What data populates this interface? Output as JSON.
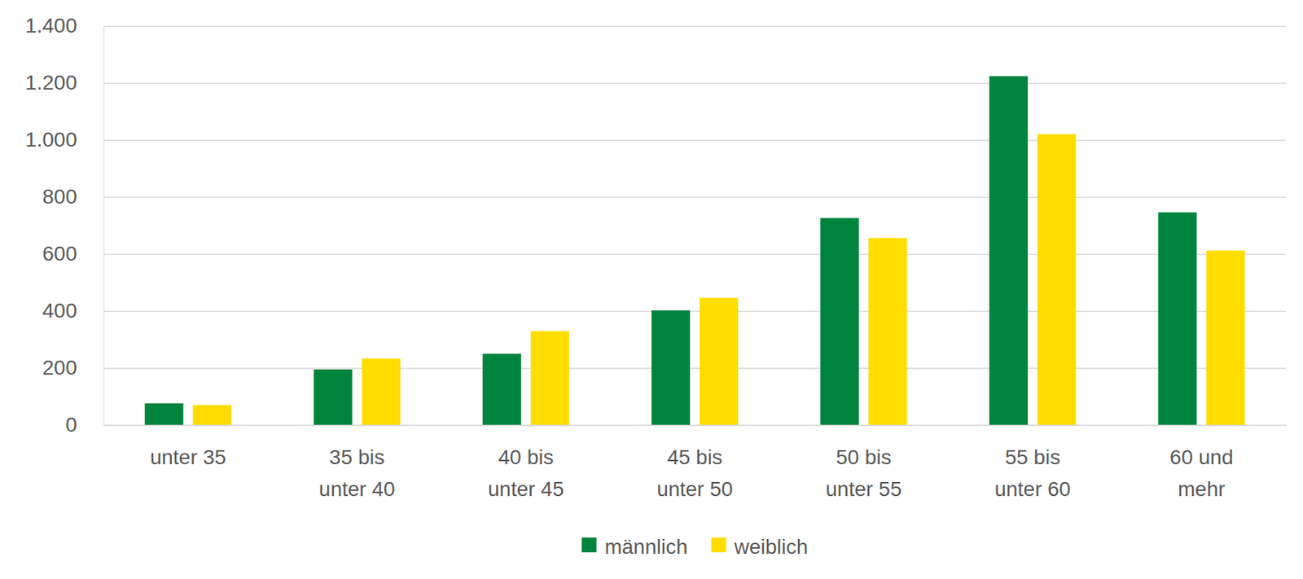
{
  "chart_data": {
    "type": "bar",
    "categories": [
      "unter 35",
      "35 bis\nunter 40",
      "40 bis\nunter 45",
      "45 bis\nunter 50",
      "50 bis\nunter 55",
      "55 bis\nunter 60",
      "60 und\nmehr"
    ],
    "series": [
      {
        "name": "männlich",
        "color": "#00843d",
        "values": [
          76,
          195,
          250,
          402,
          726,
          1224,
          746
        ]
      },
      {
        "name": "weiblich",
        "color": "#ffdd00",
        "values": [
          70,
          233,
          329,
          446,
          656,
          1020,
          612
        ]
      }
    ],
    "ylim": [
      0,
      1400
    ],
    "yticks": [
      0,
      200,
      400,
      600,
      800,
      {
        "value": 1000,
        "label": "1.000"
      },
      {
        "value": 1200,
        "label": "1.200"
      },
      {
        "value": 1400,
        "label": "1.400"
      }
    ],
    "grid": true,
    "legend": "bottom"
  }
}
